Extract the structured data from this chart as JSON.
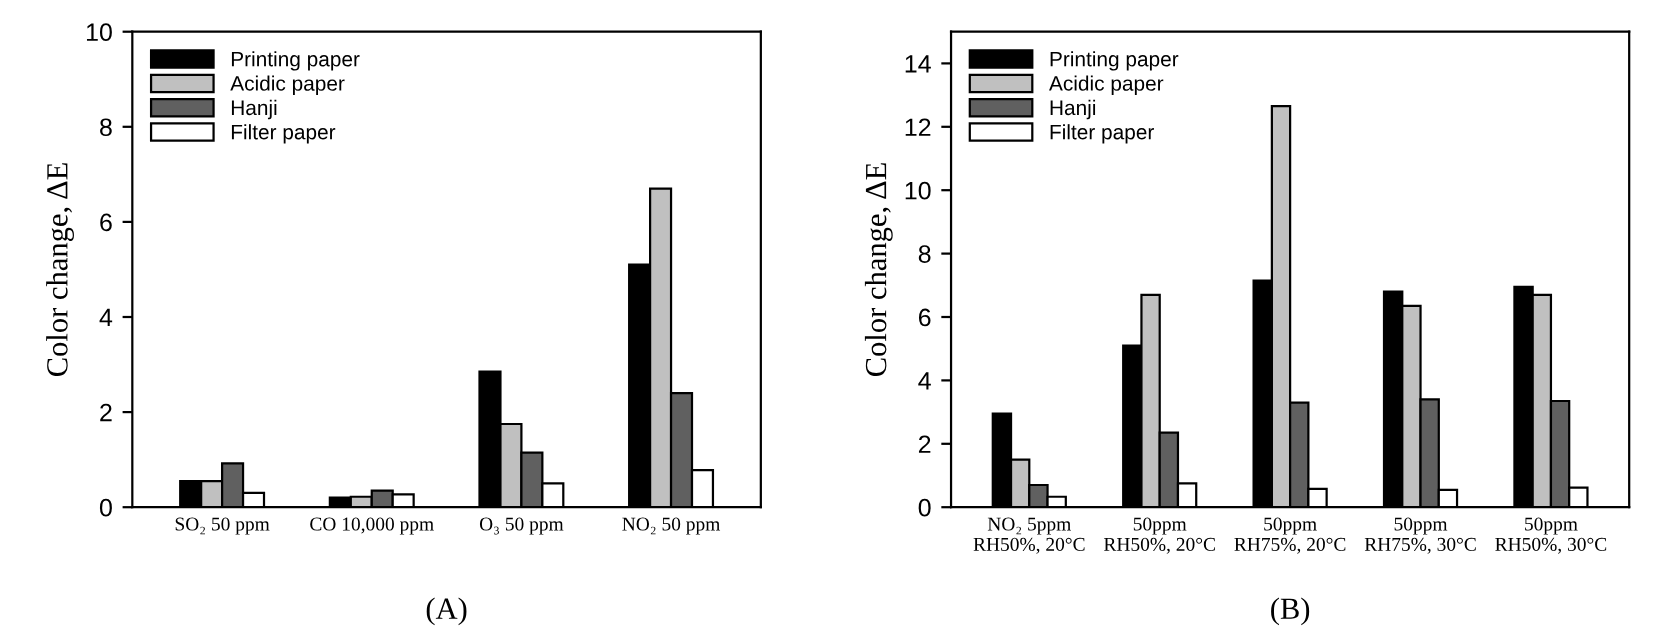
{
  "chart_data": [
    {
      "type": "bar",
      "title": "(A)",
      "ylabel": "Color change, ΔE",
      "categories": [
        "SO₂ 50 ppm",
        "CO 10,000 ppm",
        "O₃ 50 ppm",
        "NO₂ 50 ppm"
      ],
      "ylim": [
        0,
        10
      ],
      "yticks": [
        0,
        2,
        4,
        6,
        8,
        10
      ],
      "grid": false,
      "legend": "top left",
      "series": [
        {
          "name": "Printing paper",
          "color": "#000000",
          "values": [
            0.55,
            0.2,
            2.85,
            5.1
          ]
        },
        {
          "name": "Acidic paper",
          "color": "#c0c0c0",
          "values": [
            0.55,
            0.22,
            1.75,
            6.7
          ]
        },
        {
          "name": "Hanji",
          "color": "#606060",
          "values": [
            0.92,
            0.35,
            1.15,
            2.4
          ]
        },
        {
          "name": "Filter paper",
          "color": "#ffffff",
          "values": [
            0.3,
            0.27,
            0.5,
            0.78
          ]
        }
      ]
    },
    {
      "type": "bar",
      "title": "(B)",
      "ylabel": "Color change, ΔE",
      "categories": [
        "NO₂ 5ppm\nRH50%, 20°C",
        "50ppm\nRH50%, 20°C",
        "50ppm\nRH75%, 20°C",
        "50ppm\nRH75%, 30°C",
        "50ppm\nRH50%, 30°C"
      ],
      "ylim": [
        0,
        15
      ],
      "yticks": [
        0,
        2,
        4,
        6,
        8,
        10,
        12,
        14
      ],
      "grid": false,
      "legend": "top left",
      "series": [
        {
          "name": "Printing paper",
          "color": "#000000",
          "values": [
            2.95,
            5.1,
            7.15,
            6.8,
            6.95
          ]
        },
        {
          "name": "Acidic paper",
          "color": "#c0c0c0",
          "values": [
            1.5,
            6.7,
            12.65,
            6.35,
            6.7
          ]
        },
        {
          "name": "Hanji",
          "color": "#606060",
          "values": [
            0.7,
            2.35,
            3.3,
            3.4,
            3.35
          ]
        },
        {
          "name": "Filter paper",
          "color": "#ffffff",
          "values": [
            0.33,
            0.75,
            0.58,
            0.55,
            0.62
          ]
        }
      ]
    }
  ]
}
